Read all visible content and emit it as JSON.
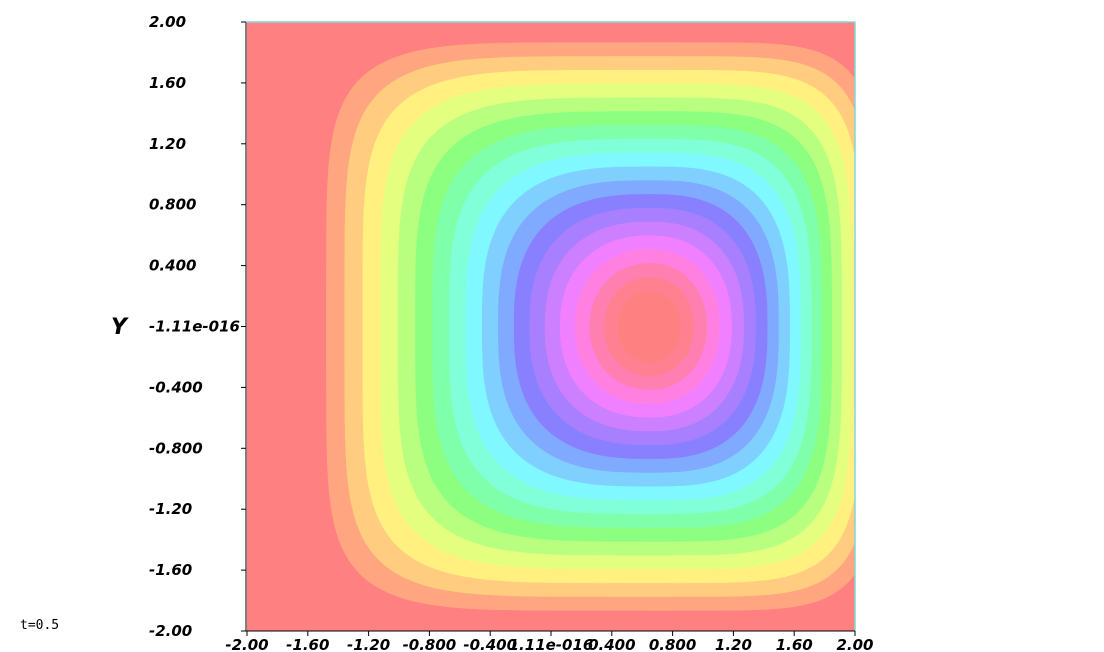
{
  "chart_data": {
    "type": "heatmap",
    "subtype": "filled-contour",
    "ylabel": "Y",
    "xlabel": "",
    "xlim": [
      -2.0,
      2.0
    ],
    "ylim": [
      -2.0,
      2.0
    ],
    "x_tick_labels": [
      "-2.00",
      "-1.60",
      "-1.20",
      "-0.800",
      "-0.400",
      "1.11e-016",
      "0.400",
      "0.800",
      "1.20",
      "1.60",
      "2.00"
    ],
    "y_tick_labels": [
      "-2.00",
      "-1.60",
      "-1.20",
      "-0.800",
      "-0.400",
      "-1.11e-016",
      "0.400",
      "0.800",
      "1.20",
      "1.60",
      "2.00"
    ],
    "x_ticks": [
      -2.0,
      -1.6,
      -1.2,
      -0.8,
      -0.4,
      0.0,
      0.4,
      0.8,
      1.2,
      1.6,
      2.0
    ],
    "y_ticks": [
      -2.0,
      -1.6,
      -1.2,
      -0.8,
      -0.4,
      0.0,
      0.4,
      0.8,
      1.2,
      1.6,
      2.0
    ],
    "center": [
      0.65,
      0.0
    ],
    "levels": 20,
    "colors": [
      "#ff8080",
      "#ffa680",
      "#ffcc80",
      "#fff080",
      "#e4ff80",
      "#b8ff80",
      "#8cff80",
      "#80ffaa",
      "#80ffd8",
      "#80f8ff",
      "#80d0ff",
      "#80aaff",
      "#8880ff",
      "#a880ff",
      "#cc80ff",
      "#f080ff",
      "#ff80e0",
      "#ff80b0",
      "#ff8090",
      "#ff8080"
    ],
    "grid": false,
    "legend": "none"
  },
  "annotation": {
    "time": "t=0.5"
  }
}
